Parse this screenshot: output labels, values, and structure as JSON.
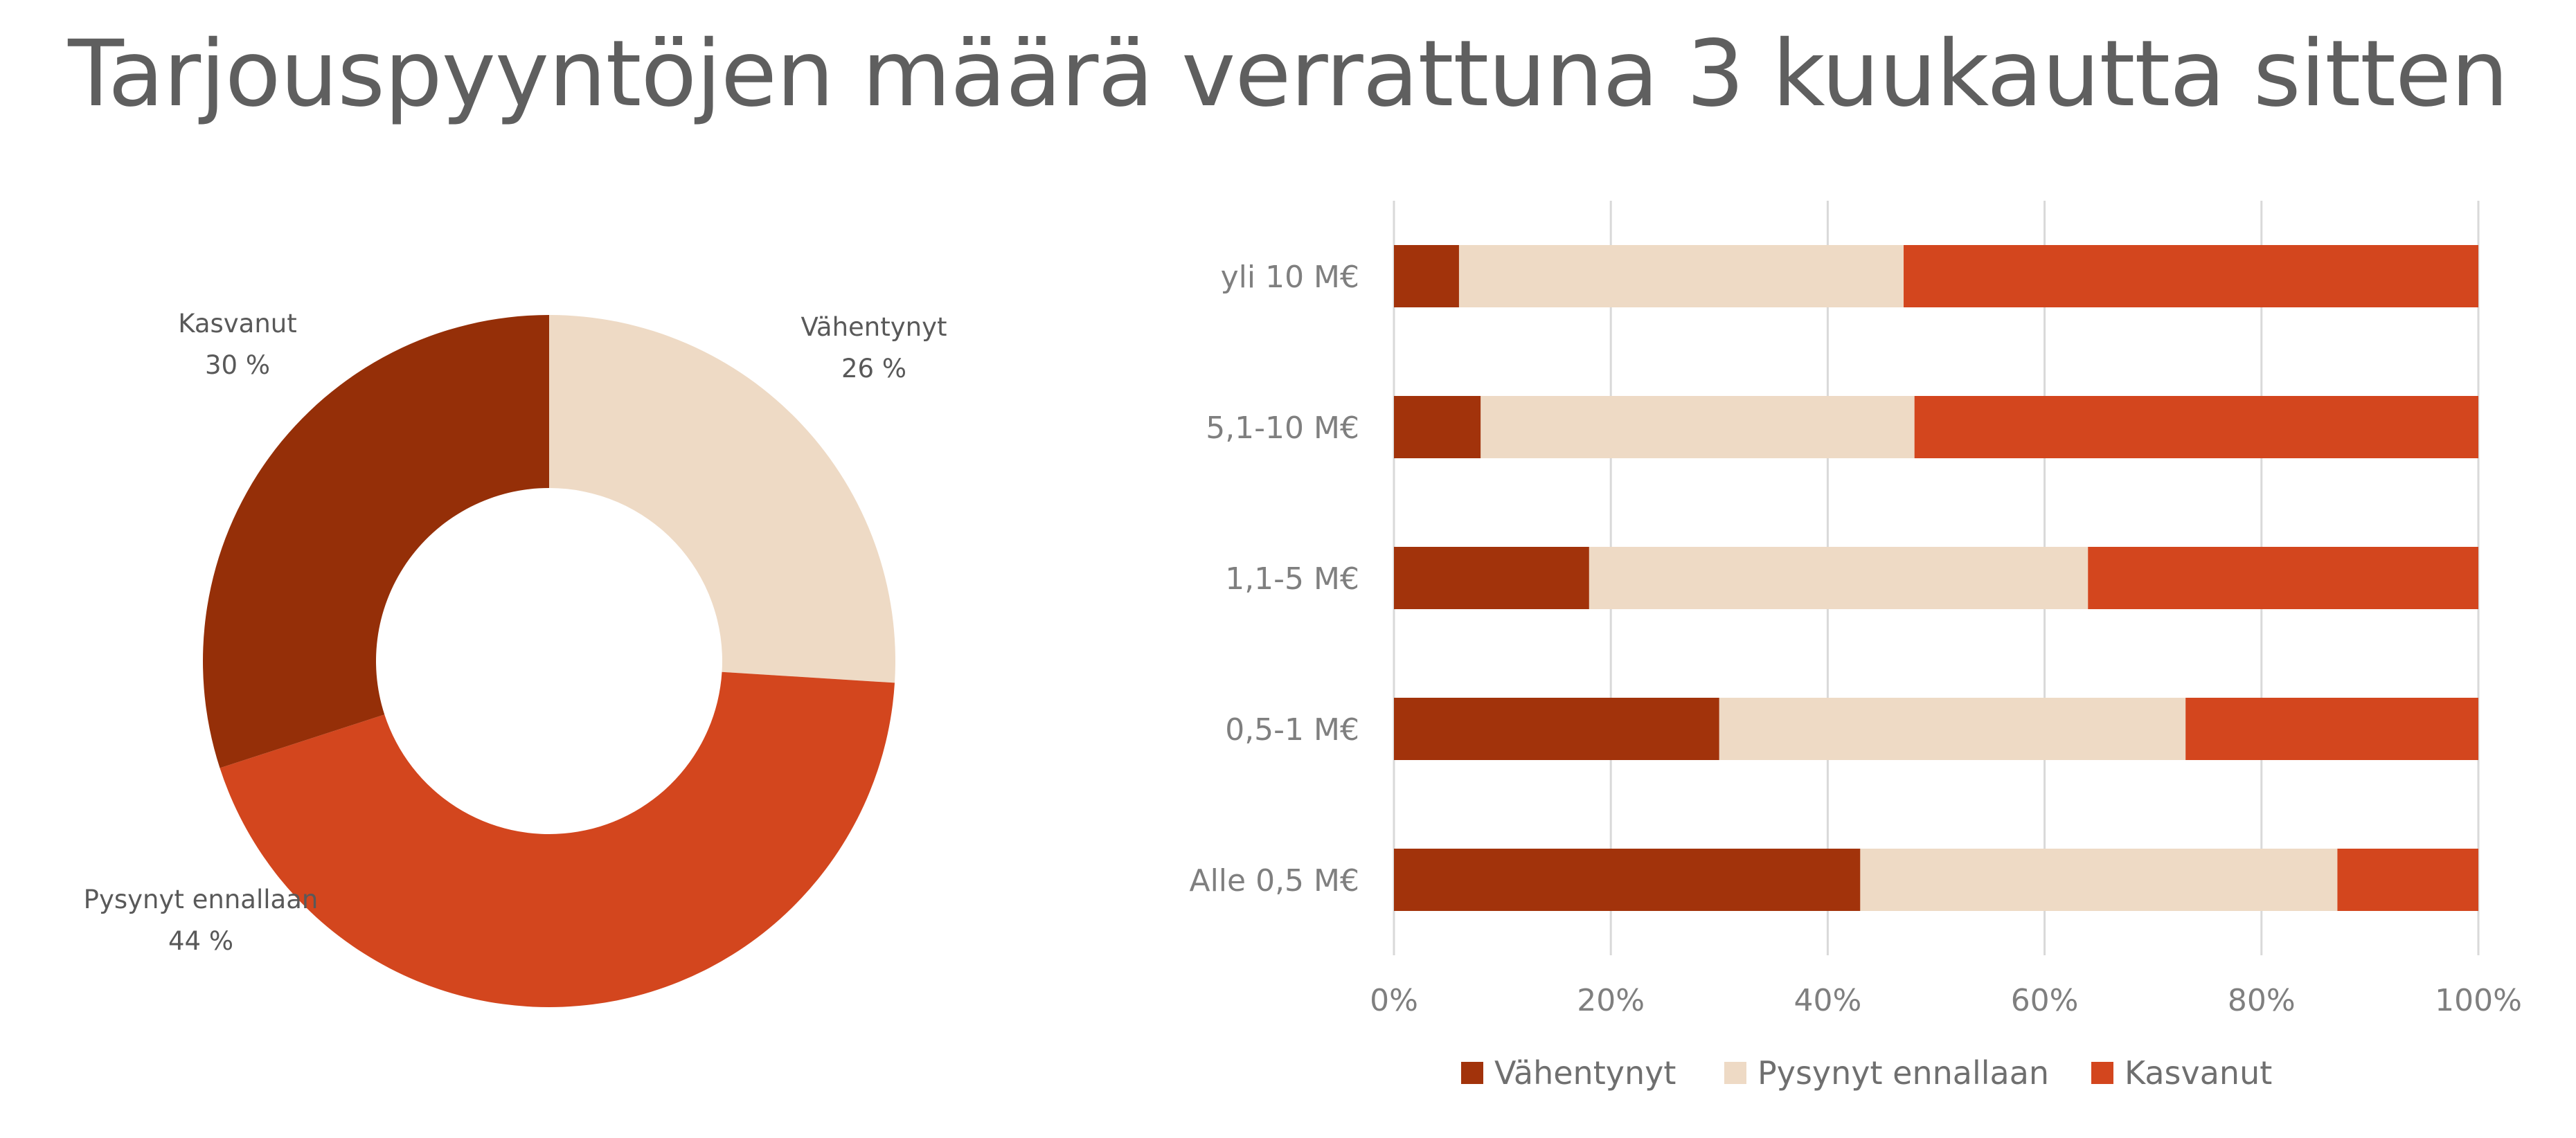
{
  "title": "Tarjouspyyntöjen määrä verrattuna 3 kuukautta sitten",
  "chart_data": [
    {
      "type": "pie",
      "variant": "donut",
      "slices": [
        {
          "label": "Vähentynyt",
          "value": 26,
          "value_label": "26 %",
          "color": "#eedac5"
        },
        {
          "label": "Pysynyt ennallaan",
          "value": 44,
          "value_label": "44 %",
          "color": "#d3461e"
        },
        {
          "label": "Kasvanut",
          "value": 30,
          "value_label": "30 %",
          "color": "#952f08"
        }
      ]
    },
    {
      "type": "bar",
      "orientation": "horizontal",
      "stacked": "percent",
      "categories": [
        "yli 10 M€",
        "5,1-10 M€",
        "1,1-5 M€",
        "0,5-1 M€",
        "Alle 0,5 M€"
      ],
      "series": [
        {
          "name": "Vähentynyt",
          "color": "#a2330b",
          "values": [
            6,
            8,
            18,
            30,
            43
          ]
        },
        {
          "name": "Pysynyt ennallaan",
          "color": "#eedac5",
          "values": [
            41,
            40,
            46,
            43,
            44
          ]
        },
        {
          "name": "Kasvanut",
          "color": "#d3461e",
          "values": [
            53,
            52,
            36,
            27,
            13
          ]
        }
      ],
      "xlim": [
        0,
        100
      ],
      "x_ticks": [
        "0%",
        "20%",
        "40%",
        "60%",
        "80%",
        "100%"
      ],
      "grid": true,
      "legend": "bottom"
    }
  ]
}
